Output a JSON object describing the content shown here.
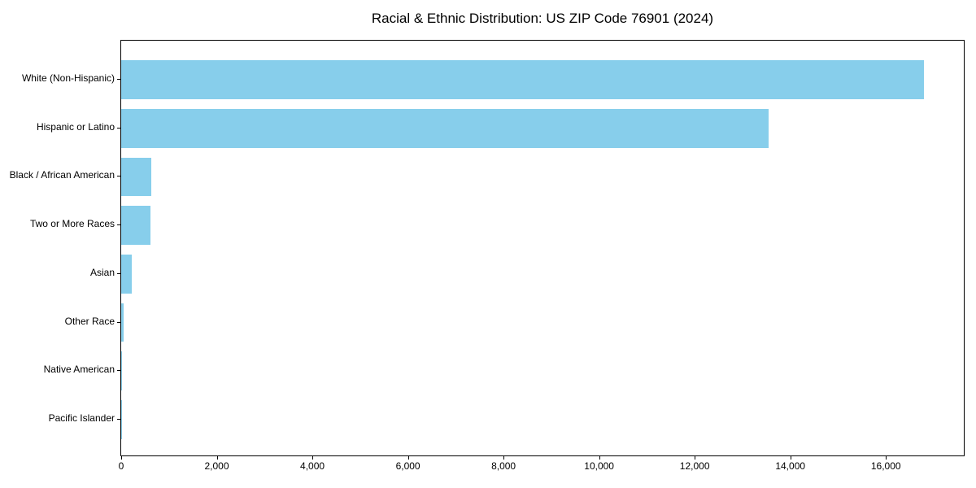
{
  "title": "Racial & Ethnic Distribution: US ZIP Code 76901 (2024)",
  "colors": {
    "bar": "#87CEEB",
    "spine": "#000000",
    "text": "#000000",
    "background": "#ffffff"
  },
  "chart_data": {
    "type": "bar",
    "orientation": "horizontal",
    "title": "Racial & Ethnic Distribution: US ZIP Code 76901 (2024)",
    "xlabel": "",
    "ylabel": "",
    "categories": [
      "White (Non-Hispanic)",
      "Hispanic or Latino",
      "Black / African American",
      "Two or More Races",
      "Asian",
      "Other Race",
      "Native American",
      "Pacific Islander"
    ],
    "values": [
      16800,
      13550,
      630,
      610,
      215,
      50,
      20,
      5
    ],
    "xlim": [
      0,
      17630
    ],
    "x_ticks": [
      0,
      2000,
      4000,
      6000,
      8000,
      10000,
      12000,
      14000,
      16000
    ],
    "x_tick_labels": [
      "0",
      "2,000",
      "4,000",
      "6,000",
      "8,000",
      "10,000",
      "12,000",
      "14,000",
      "16,000"
    ],
    "grid": false,
    "legend": null,
    "bar_color": "#87CEEB"
  }
}
